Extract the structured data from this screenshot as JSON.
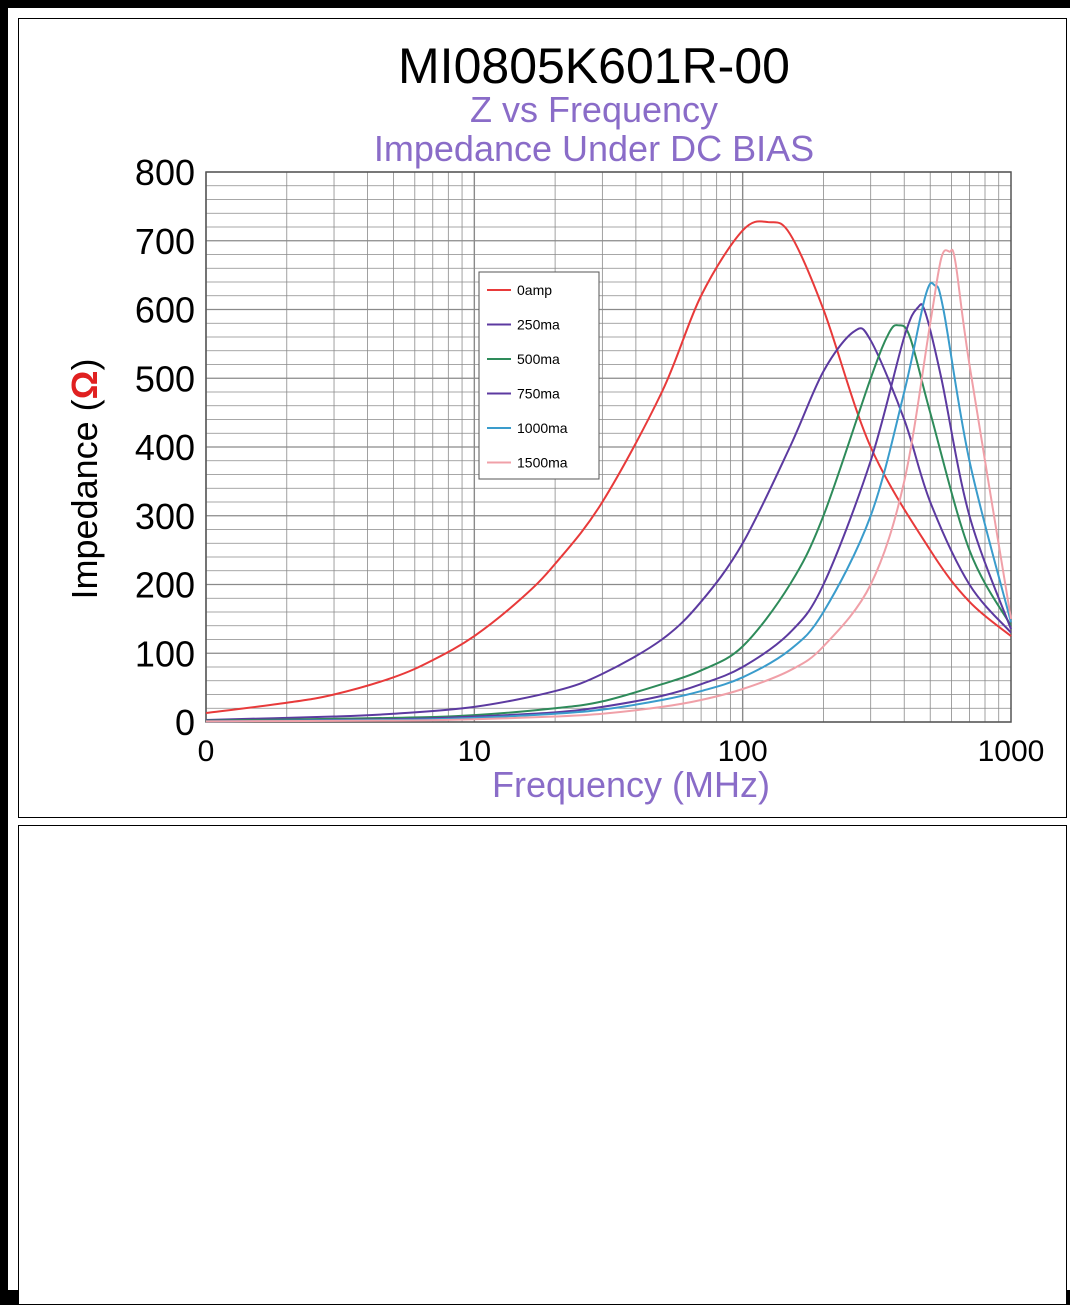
{
  "chart_data": {
    "type": "line",
    "title": "MI0805K601R-00",
    "subtitle_lines": [
      "Z vs Frequency",
      "Impedance Under DC BIAS"
    ],
    "xlabel": "Frequency (MHz)",
    "ylabel": "Impedance (",
    "ylabel_symbol": "Ω",
    "ylabel_close": ")",
    "x_scale": "log",
    "xlim": [
      1,
      1000
    ],
    "ylim": [
      0,
      800
    ],
    "x_tick_labels": [
      "0",
      "10",
      "100",
      "1000"
    ],
    "y_tick_labels": [
      "0",
      "100",
      "200",
      "300",
      "400",
      "500",
      "600",
      "700",
      "800"
    ],
    "grid": true,
    "legend_position": "center-left",
    "colors": {
      "title": "#000000",
      "subtitle": "#8a6cc8",
      "xlabel": "#8a6cc8",
      "ylabel": "#000000",
      "omega": "#e02020",
      "grid": "#8a8a8a"
    },
    "series": [
      {
        "name": "0amp",
        "color": "#e83a3a",
        "x": [
          1,
          2,
          3,
          5,
          7,
          10,
          15,
          20,
          30,
          50,
          70,
          100,
          125,
          150,
          200,
          300,
          500,
          700,
          1000
        ],
        "y": [
          13,
          28,
          40,
          65,
          90,
          125,
          180,
          230,
          320,
          480,
          620,
          715,
          727,
          710,
          600,
          400,
          250,
          175,
          125
        ]
      },
      {
        "name": "250ma",
        "color": "#5c3aa0",
        "x": [
          1,
          3,
          5,
          10,
          20,
          30,
          50,
          70,
          100,
          150,
          200,
          260,
          300,
          400,
          500,
          700,
          1000
        ],
        "y": [
          3,
          8,
          12,
          22,
          45,
          70,
          120,
          175,
          260,
          400,
          510,
          568,
          555,
          440,
          320,
          200,
          130
        ]
      },
      {
        "name": "500ma",
        "color": "#2e8b5a",
        "x": [
          1,
          5,
          10,
          20,
          30,
          50,
          70,
          100,
          150,
          200,
          300,
          350,
          380,
          420,
          500,
          700,
          1000
        ],
        "y": [
          2,
          6,
          10,
          20,
          30,
          55,
          75,
          110,
          200,
          300,
          500,
          565,
          577,
          560,
          450,
          250,
          140
        ]
      },
      {
        "name": "750ma",
        "color": "#5c3aa0",
        "x": [
          1,
          5,
          10,
          20,
          30,
          50,
          70,
          100,
          150,
          200,
          300,
          400,
          450,
          480,
          550,
          700,
          1000
        ],
        "y": [
          1,
          4,
          8,
          14,
          22,
          38,
          55,
          80,
          130,
          200,
          380,
          560,
          603,
          595,
          500,
          300,
          135
        ]
      },
      {
        "name": "1000ma",
        "color": "#3a9ccc",
        "x": [
          1,
          5,
          10,
          20,
          30,
          50,
          70,
          100,
          150,
          200,
          300,
          400,
          480,
          520,
          560,
          700,
          1000
        ],
        "y": [
          1,
          3,
          6,
          12,
          18,
          32,
          45,
          65,
          105,
          160,
          300,
          480,
          620,
          635,
          600,
          380,
          145
        ]
      },
      {
        "name": "1500ma",
        "color": "#f0a0a8",
        "x": [
          1,
          5,
          10,
          20,
          30,
          50,
          70,
          100,
          150,
          200,
          300,
          400,
          500,
          550,
          590,
          620,
          700,
          1000
        ],
        "y": [
          1,
          2,
          4,
          8,
          12,
          22,
          32,
          48,
          75,
          110,
          200,
          350,
          580,
          675,
          684,
          670,
          520,
          150
        ]
      }
    ]
  }
}
